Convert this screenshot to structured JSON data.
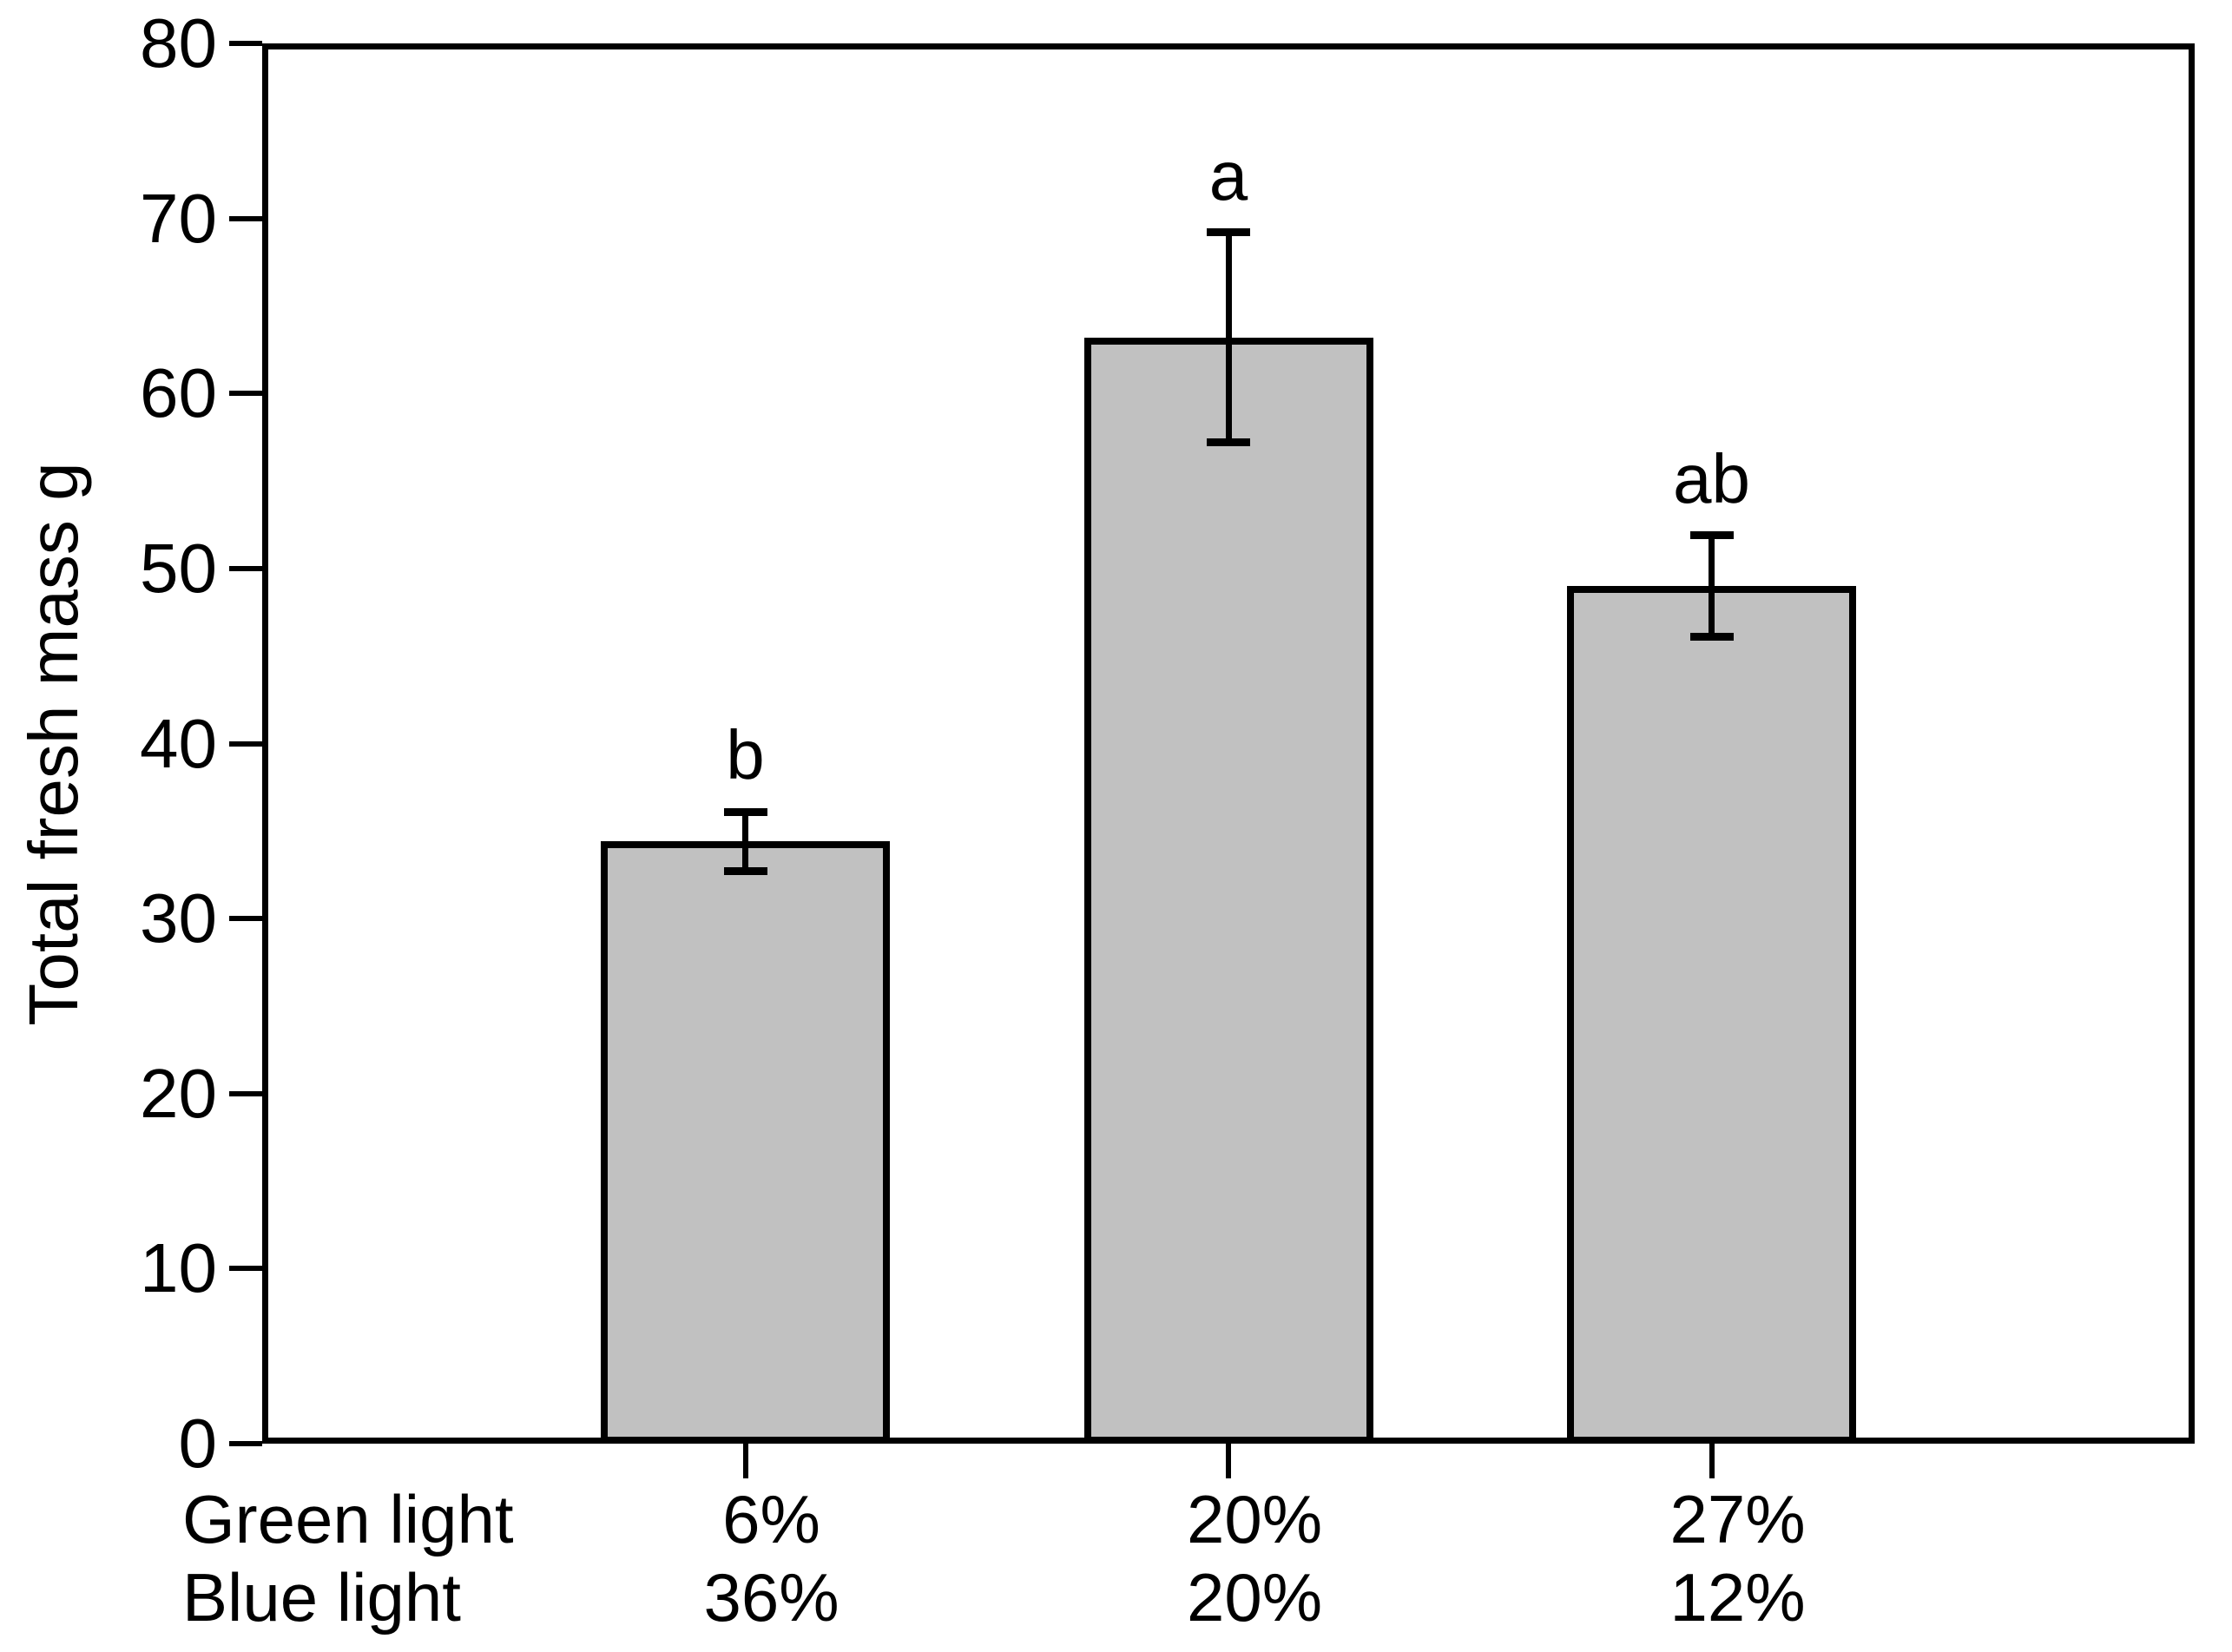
{
  "figure": {
    "background": "#ffffff",
    "text_color": "#000000"
  },
  "chart_data": {
    "type": "bar",
    "title": "",
    "xlabel": "",
    "ylabel": "Total fresh mass g",
    "ylim": [
      0,
      80
    ],
    "ytick_step": 10,
    "ytick_labels": [
      "0",
      "10",
      "20",
      "30",
      "40",
      "50",
      "60",
      "70",
      "80"
    ],
    "grid": false,
    "legend": null,
    "bar_fill_color": "#c1c1c1",
    "bar_border_color": "#000000",
    "error_bar_color": "#000000",
    "bars": [
      {
        "value": 34.4,
        "error": 1.7,
        "sig_label": "b"
      },
      {
        "value": 63.2,
        "error": 6.0,
        "sig_label": "a"
      },
      {
        "value": 49.0,
        "error": 2.9,
        "sig_label": "ab"
      }
    ],
    "x_axis_rows": [
      {
        "label": "Green light",
        "values": [
          "6%",
          "20%",
          "27%"
        ]
      },
      {
        "label": "Blue light",
        "values": [
          "36%",
          "20%",
          "12%"
        ]
      }
    ]
  }
}
